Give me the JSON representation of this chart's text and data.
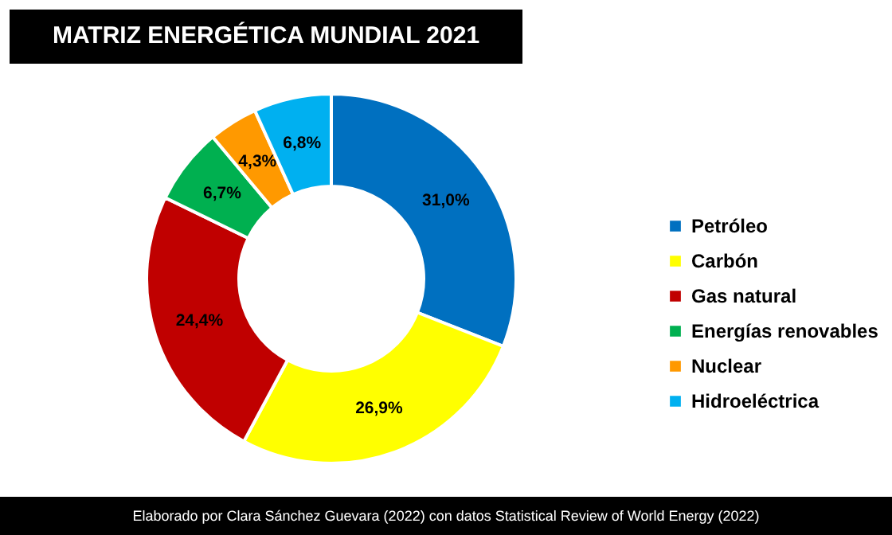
{
  "chart_data": {
    "type": "donut",
    "title": "MATRIZ ENERGÉTICA MUNDIAL 2021",
    "categories": [
      "Petróleo",
      "Carbón",
      "Gas natural",
      "Energías renovables",
      "Nuclear",
      "Hidroeléctrica"
    ],
    "values": [
      31.0,
      26.9,
      24.4,
      6.7,
      4.3,
      6.8
    ],
    "value_labels": [
      "31,0%",
      "26,9%",
      "24,4%",
      "6,7%",
      "4,3%",
      "6,8%"
    ],
    "colors": [
      "#0070c0",
      "#ffff00",
      "#c00000",
      "#00b050",
      "#ff9900",
      "#00b0f0"
    ],
    "legend": "right",
    "annotations": [
      "Elaborado por Clara Sánchez Guevara (2022) con datos Statistical Review of World Energy (2022)"
    ]
  }
}
